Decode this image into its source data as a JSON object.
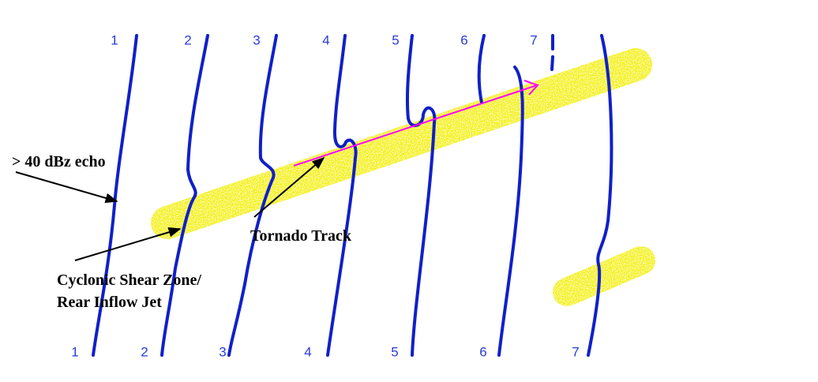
{
  "top_labels": [
    "1",
    "2",
    "3",
    "4",
    "5",
    "6",
    "7"
  ],
  "bottom_labels": [
    "1",
    "2",
    "3",
    "4",
    "5",
    "6",
    "7"
  ],
  "annotations": {
    "echo": "> 40 dBz echo",
    "tornado_track": "Tornado Track",
    "shear_zone": [
      "Cyclonic Shear Zone/",
      "Rear Inflow Jet"
    ]
  }
}
